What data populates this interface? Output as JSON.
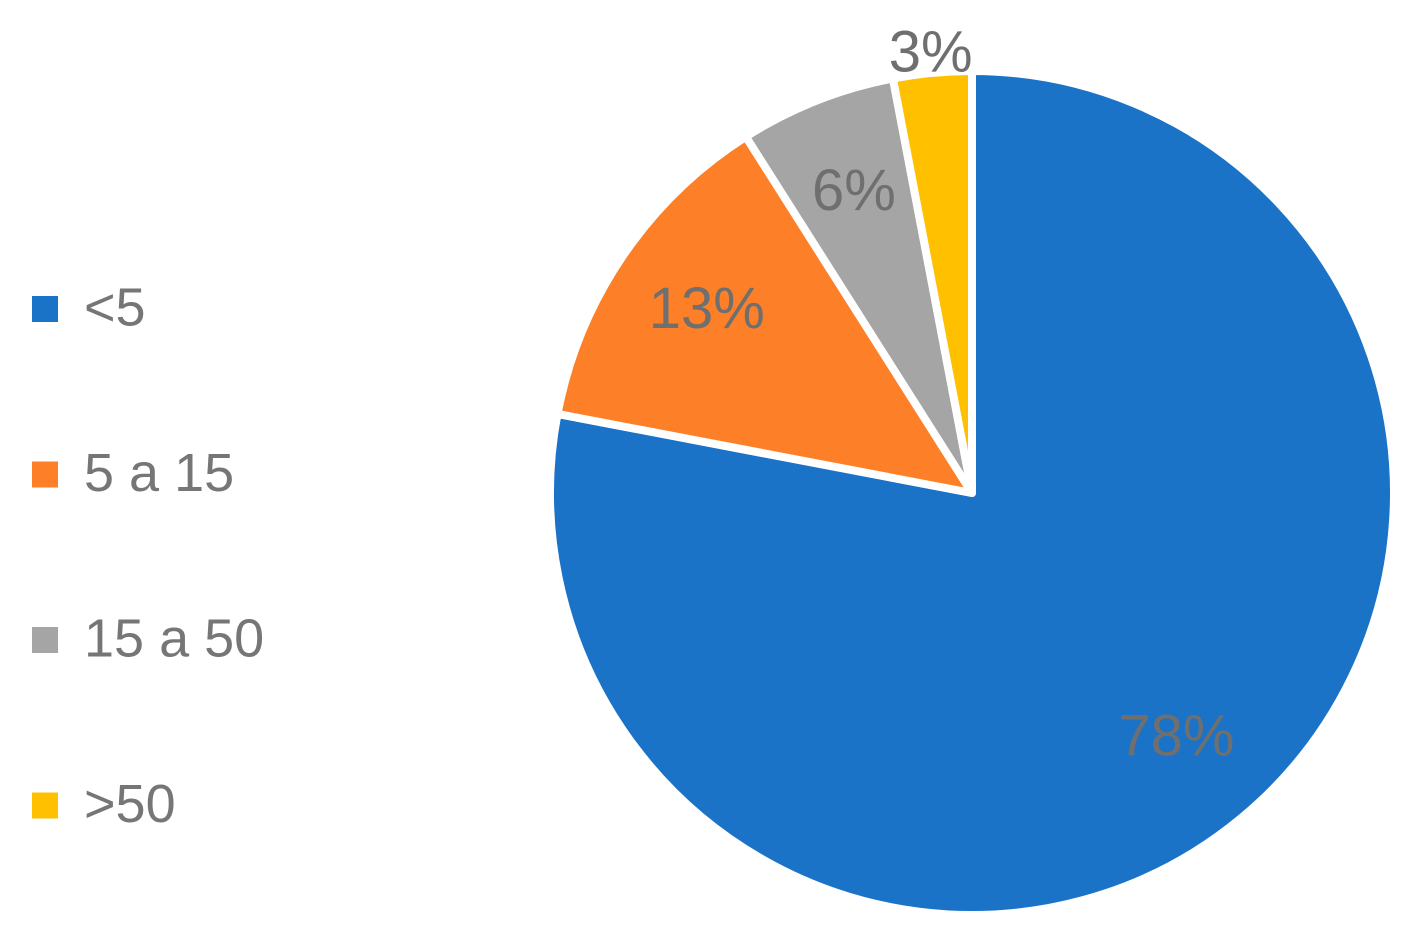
{
  "chart_data": {
    "type": "pie",
    "categories": [
      "<5",
      "5 a 15",
      "15 a 50",
      ">50"
    ],
    "values": [
      78,
      13,
      6,
      3
    ],
    "value_labels": [
      "78%",
      "13%",
      "6%",
      "3%"
    ],
    "colors": [
      "#1a73c7",
      "#fd7f27",
      "#a5a5a5",
      "#ffc000"
    ],
    "legend": "left"
  }
}
